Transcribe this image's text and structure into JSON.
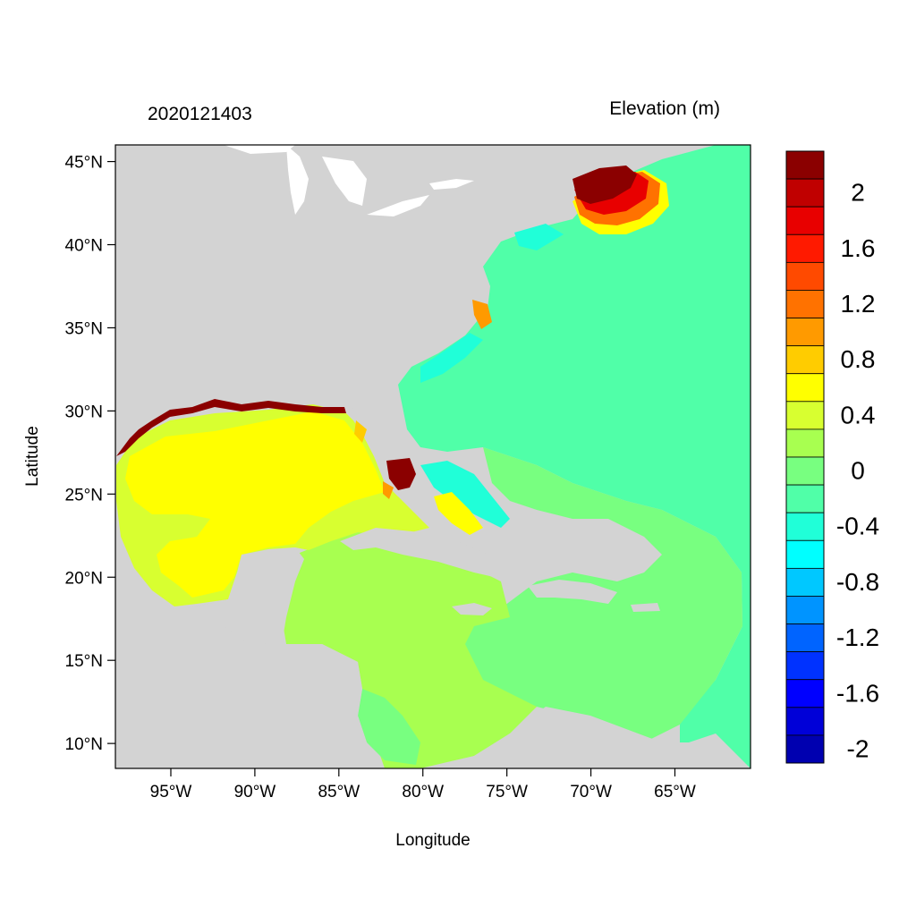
{
  "map": {
    "date_label": "2020121403",
    "variable_label": "Elevation (m)",
    "x_axis_label": "Longitude",
    "y_axis_label": "Latitude",
    "lon_range": [
      -98.3,
      -60.5
    ],
    "lat_range": [
      8.5,
      46
    ],
    "lon_ticks": [
      {
        "value": -95,
        "label": "95°W"
      },
      {
        "value": -90,
        "label": "90°W"
      },
      {
        "value": -85,
        "label": "85°W"
      },
      {
        "value": -80,
        "label": "80°W"
      },
      {
        "value": -75,
        "label": "75°W"
      },
      {
        "value": -70,
        "label": "70°W"
      },
      {
        "value": -65,
        "label": "65°W"
      }
    ],
    "lat_ticks": [
      {
        "value": 45,
        "label": "45°N"
      },
      {
        "value": 40,
        "label": "40°N"
      },
      {
        "value": 35,
        "label": "35°N"
      },
      {
        "value": 30,
        "label": "30°N"
      },
      {
        "value": 25,
        "label": "25°N"
      },
      {
        "value": 20,
        "label": "20°N"
      },
      {
        "value": 15,
        "label": "15°N"
      },
      {
        "value": 10,
        "label": "10°N"
      }
    ],
    "land_color": "#d3d3d3",
    "lake_color": "#ffffff"
  },
  "colorbar": {
    "levels_top_to_bottom": [
      {
        "color": "#8b0000",
        "label": ""
      },
      {
        "color": "#c00000",
        "label": "2"
      },
      {
        "color": "#e80000",
        "label": ""
      },
      {
        "color": "#ff1a00",
        "label": "1.6"
      },
      {
        "color": "#ff4a00",
        "label": ""
      },
      {
        "color": "#ff7200",
        "label": "1.2"
      },
      {
        "color": "#ff9a00",
        "label": ""
      },
      {
        "color": "#ffcc00",
        "label": "0.8"
      },
      {
        "color": "#ffff00",
        "label": ""
      },
      {
        "color": "#d8ff30",
        "label": "0.4"
      },
      {
        "color": "#a8ff50",
        "label": ""
      },
      {
        "color": "#78ff80",
        "label": "0"
      },
      {
        "color": "#50ffa8",
        "label": ""
      },
      {
        "color": "#20ffd8",
        "label": "-0.4"
      },
      {
        "color": "#00ffff",
        "label": ""
      },
      {
        "color": "#00c8ff",
        "label": "-0.8"
      },
      {
        "color": "#0094ff",
        "label": ""
      },
      {
        "color": "#0064ff",
        "label": "-1.2"
      },
      {
        "color": "#0032ff",
        "label": ""
      },
      {
        "color": "#0000ff",
        "label": "-1.6"
      },
      {
        "color": "#0000d8",
        "label": ""
      },
      {
        "color": "#0000b0",
        "label": "-2"
      }
    ]
  },
  "regions": {
    "gulf_of_mexico_elevation": "0.4 to 0.8",
    "caribbean_elevation": "0 to 0.4",
    "atlantic_elevation": "-0.4 to 0",
    "gulf_of_maine_elevation": "above 2",
    "south_florida_coast_elevation": "above 2"
  }
}
